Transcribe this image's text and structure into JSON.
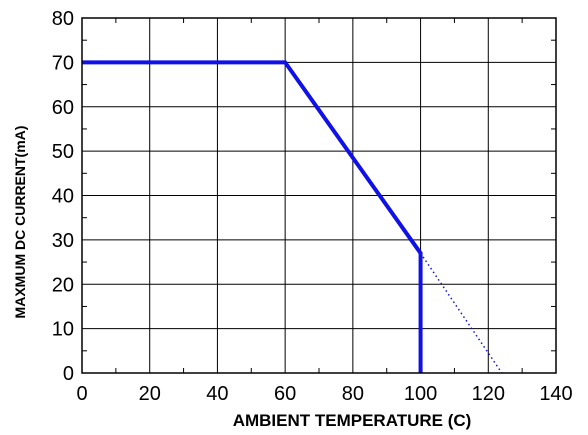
{
  "chart_data": {
    "type": "line",
    "title": "",
    "xlabel": "AMBIENT TEMPERATURE (C)",
    "ylabel": "MAXMUM DC CURRENT(mA)",
    "xlim": [
      0,
      140
    ],
    "ylim": [
      0,
      80
    ],
    "x_ticks": [
      "0",
      "20",
      "40",
      "60",
      "80",
      "100",
      "120",
      "140"
    ],
    "y_ticks": [
      "0",
      "10",
      "20",
      "30",
      "40",
      "50",
      "60",
      "70",
      "80"
    ],
    "grid": true,
    "series": [
      {
        "style": "solid",
        "color": "#1010e8",
        "points": [
          [
            0,
            70
          ],
          [
            60,
            70
          ],
          [
            100,
            27
          ],
          [
            100,
            0
          ]
        ]
      },
      {
        "style": "dotted",
        "color": "#1010e8",
        "points": [
          [
            100,
            27
          ],
          [
            124,
            0
          ]
        ]
      }
    ]
  }
}
